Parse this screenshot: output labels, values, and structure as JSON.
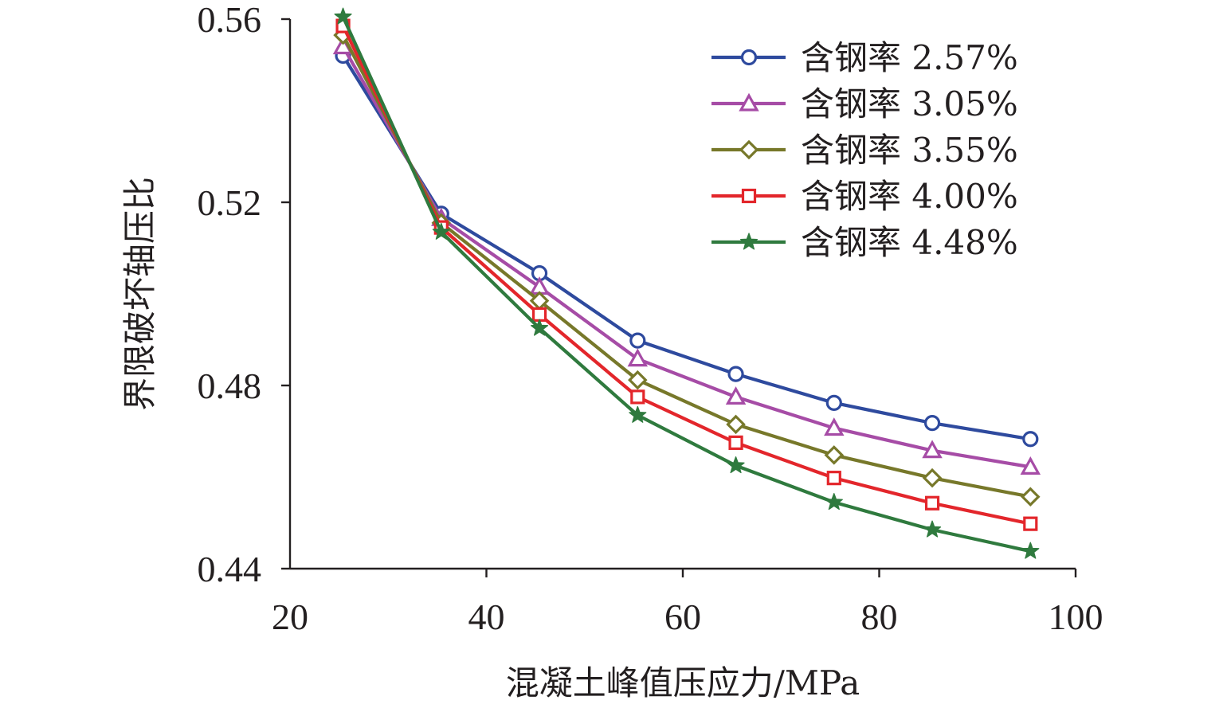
{
  "chart_data": {
    "type": "line",
    "title": "",
    "xlabel": "混凝土峰值压应力/MPa",
    "ylabel": "界限破坏轴压比",
    "xlim": [
      20,
      100
    ],
    "ylim": [
      0.44,
      0.56
    ],
    "xticks": [
      20,
      40,
      60,
      80,
      100
    ],
    "yticks": [
      0.44,
      0.48,
      0.52,
      0.56
    ],
    "xtick_labels": [
      "20",
      "40",
      "60",
      "80",
      "100"
    ],
    "ytick_labels": [
      "0.44",
      "0.48",
      "0.52",
      "0.56"
    ],
    "grid": false,
    "legend_position": "top-right",
    "x": [
      25.4,
      35.4,
      45.4,
      55.4,
      65.4,
      75.4,
      85.4,
      95.4
    ],
    "series": [
      {
        "name": "含钢率 2.57%",
        "color": "#2e4a9e",
        "marker": "circle",
        "values": [
          0.552,
          0.5175,
          0.5045,
          0.4898,
          0.4825,
          0.4762,
          0.4718,
          0.4683
        ]
      },
      {
        "name": "含钢率 3.05%",
        "color": "#a64ca6",
        "marker": "triangle",
        "values": [
          0.554,
          0.5165,
          0.5015,
          0.4858,
          0.4775,
          0.4707,
          0.4658,
          0.4622
        ]
      },
      {
        "name": "含钢率 3.55%",
        "color": "#77782a",
        "marker": "diamond",
        "values": [
          0.5565,
          0.5155,
          0.4985,
          0.4812,
          0.4715,
          0.4648,
          0.4598,
          0.4557
        ]
      },
      {
        "name": "含钢率 4.00%",
        "color": "#e3262b",
        "marker": "square",
        "values": [
          0.5585,
          0.5145,
          0.4955,
          0.4775,
          0.4675,
          0.4598,
          0.4543,
          0.4498
        ]
      },
      {
        "name": "含钢率 4.48%",
        "color": "#2f7a3e",
        "marker": "star",
        "values": [
          0.5605,
          0.5135,
          0.4925,
          0.4735,
          0.4625,
          0.4545,
          0.4485,
          0.4438
        ]
      }
    ]
  }
}
